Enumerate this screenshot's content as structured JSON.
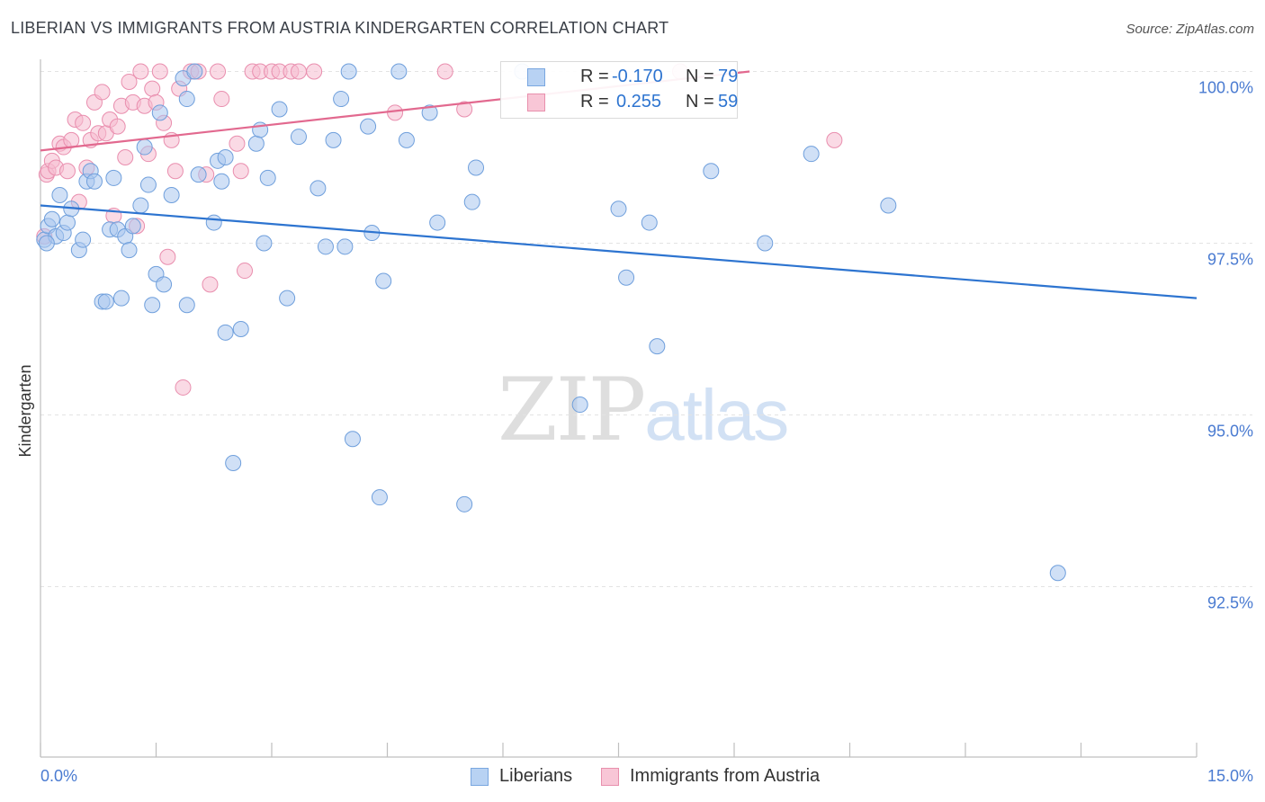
{
  "title": "LIBERIAN VS IMMIGRANTS FROM AUSTRIA KINDERGARTEN CORRELATION CHART",
  "source": "Source: ZipAtlas.com",
  "watermark": {
    "zip": "ZIP",
    "atlas": "atlas"
  },
  "legend": {
    "r_label": "R =",
    "n_label": "N =",
    "series": [
      {
        "r": "-0.170",
        "n": "79",
        "fill": "#b8d2f3",
        "stroke": "#7aa7e0"
      },
      {
        "r": "0.255",
        "n": "59",
        "fill": "#f8c6d6",
        "stroke": "#e890ad"
      }
    ]
  },
  "bottom_legend": [
    "Liberians",
    "Immigrants from Austria"
  ],
  "colors": {
    "blue_point": "#a9c7ee",
    "blue_stroke": "#6f9fdc",
    "blue_line": "#2d74d0",
    "pink_point": "#f6bcd0",
    "pink_stroke": "#e98eae",
    "pink_line": "#e2698f",
    "tick_label": "#4a7bd1",
    "grid": "#e3e3e3"
  },
  "chart_data": {
    "type": "scatter",
    "title": "LIBERIAN VS IMMIGRANTS FROM AUSTRIA KINDERGARTEN CORRELATION CHART",
    "xlabel": "",
    "ylabel": "Kindergarten",
    "xlim": [
      0,
      15
    ],
    "ylim": [
      90.0,
      100.5
    ],
    "x_tick_labels": [
      "0.0%",
      "15.0%"
    ],
    "y_ticks": [
      92.5,
      95.0,
      97.5,
      100.0
    ],
    "y_tick_labels": [
      "92.5%",
      "95.0%",
      "97.5%",
      "100.0%"
    ],
    "grid": true,
    "legend_position": "top-center",
    "series": [
      {
        "name": "Liberians",
        "trend": {
          "x": [
            0.0,
            15.0
          ],
          "y": [
            98.05,
            96.7
          ]
        },
        "points": [
          [
            0.05,
            97.55
          ],
          [
            0.1,
            97.75
          ],
          [
            0.15,
            97.85
          ],
          [
            0.2,
            97.6
          ],
          [
            0.25,
            98.2
          ],
          [
            0.3,
            97.65
          ],
          [
            0.35,
            97.8
          ],
          [
            0.4,
            98.0
          ],
          [
            0.5,
            97.4
          ],
          [
            0.55,
            97.55
          ],
          [
            0.6,
            98.4
          ],
          [
            0.65,
            98.55
          ],
          [
            0.7,
            98.4
          ],
          [
            0.8,
            96.65
          ],
          [
            0.85,
            96.65
          ],
          [
            0.9,
            97.7
          ],
          [
            0.95,
            98.45
          ],
          [
            1.0,
            97.7
          ],
          [
            1.05,
            96.7
          ],
          [
            1.1,
            97.6
          ],
          [
            1.15,
            97.4
          ],
          [
            1.2,
            97.75
          ],
          [
            1.3,
            98.05
          ],
          [
            1.35,
            98.9
          ],
          [
            1.4,
            98.35
          ],
          [
            1.45,
            96.6
          ],
          [
            1.5,
            97.05
          ],
          [
            1.55,
            99.4
          ],
          [
            1.6,
            96.9
          ],
          [
            1.7,
            98.2
          ],
          [
            1.85,
            99.9
          ],
          [
            1.9,
            99.6
          ],
          [
            1.9,
            96.6
          ],
          [
            2.0,
            100.0
          ],
          [
            2.05,
            98.5
          ],
          [
            2.25,
            97.8
          ],
          [
            2.3,
            98.7
          ],
          [
            2.35,
            98.4
          ],
          [
            2.4,
            98.75
          ],
          [
            2.4,
            96.2
          ],
          [
            2.5,
            94.3
          ],
          [
            2.6,
            96.25
          ],
          [
            2.8,
            98.95
          ],
          [
            2.85,
            99.15
          ],
          [
            2.9,
            97.5
          ],
          [
            2.95,
            98.45
          ],
          [
            3.1,
            99.45
          ],
          [
            3.2,
            96.7
          ],
          [
            3.35,
            99.05
          ],
          [
            3.6,
            98.3
          ],
          [
            3.7,
            97.45
          ],
          [
            3.8,
            99.0
          ],
          [
            3.9,
            99.6
          ],
          [
            3.95,
            97.45
          ],
          [
            4.0,
            100.0
          ],
          [
            4.05,
            94.65
          ],
          [
            4.25,
            99.2
          ],
          [
            4.3,
            97.65
          ],
          [
            4.4,
            93.8
          ],
          [
            4.45,
            96.95
          ],
          [
            4.65,
            100.0
          ],
          [
            4.75,
            99.0
          ],
          [
            5.05,
            99.4
          ],
          [
            5.15,
            97.8
          ],
          [
            5.5,
            93.7
          ],
          [
            5.6,
            98.1
          ],
          [
            5.65,
            98.6
          ],
          [
            6.25,
            100.0
          ],
          [
            7.0,
            95.15
          ],
          [
            7.5,
            98.0
          ],
          [
            7.6,
            97.0
          ],
          [
            7.9,
            97.8
          ],
          [
            8.0,
            96.0
          ],
          [
            8.7,
            98.55
          ],
          [
            9.4,
            97.5
          ],
          [
            10.0,
            98.8
          ],
          [
            11.0,
            98.05
          ],
          [
            13.2,
            92.7
          ],
          [
            0.08,
            97.5
          ]
        ]
      },
      {
        "name": "Immigrants from Austria",
        "trend": {
          "x": [
            0.0,
            9.2
          ],
          "y": [
            98.85,
            100.0
          ]
        },
        "points": [
          [
            0.05,
            97.6
          ],
          [
            0.08,
            98.5
          ],
          [
            0.1,
            98.55
          ],
          [
            0.15,
            98.7
          ],
          [
            0.2,
            98.6
          ],
          [
            0.25,
            98.95
          ],
          [
            0.3,
            98.9
          ],
          [
            0.35,
            98.55
          ],
          [
            0.4,
            99.0
          ],
          [
            0.45,
            99.3
          ],
          [
            0.5,
            98.1
          ],
          [
            0.55,
            99.25
          ],
          [
            0.6,
            98.6
          ],
          [
            0.65,
            99.0
          ],
          [
            0.7,
            99.55
          ],
          [
            0.75,
            99.1
          ],
          [
            0.8,
            99.7
          ],
          [
            0.85,
            99.1
          ],
          [
            0.9,
            99.3
          ],
          [
            0.95,
            97.9
          ],
          [
            1.0,
            99.2
          ],
          [
            1.05,
            99.5
          ],
          [
            1.1,
            98.75
          ],
          [
            1.15,
            99.85
          ],
          [
            1.2,
            99.55
          ],
          [
            1.25,
            97.75
          ],
          [
            1.3,
            100.0
          ],
          [
            1.35,
            99.5
          ],
          [
            1.4,
            98.8
          ],
          [
            1.45,
            99.75
          ],
          [
            1.5,
            99.55
          ],
          [
            1.55,
            100.0
          ],
          [
            1.6,
            99.25
          ],
          [
            1.65,
            97.3
          ],
          [
            1.7,
            99.0
          ],
          [
            1.75,
            98.55
          ],
          [
            1.8,
            99.75
          ],
          [
            1.85,
            95.4
          ],
          [
            1.95,
            100.0
          ],
          [
            2.05,
            100.0
          ],
          [
            2.15,
            98.5
          ],
          [
            2.2,
            96.9
          ],
          [
            2.3,
            100.0
          ],
          [
            2.35,
            99.6
          ],
          [
            2.55,
            98.95
          ],
          [
            2.6,
            98.55
          ],
          [
            2.65,
            97.1
          ],
          [
            2.75,
            100.0
          ],
          [
            2.85,
            100.0
          ],
          [
            3.0,
            100.0
          ],
          [
            3.1,
            100.0
          ],
          [
            3.25,
            100.0
          ],
          [
            3.35,
            100.0
          ],
          [
            3.55,
            100.0
          ],
          [
            4.6,
            99.4
          ],
          [
            5.25,
            100.0
          ],
          [
            5.5,
            99.45
          ],
          [
            8.3,
            100.0
          ],
          [
            10.3,
            99.0
          ]
        ]
      }
    ]
  }
}
